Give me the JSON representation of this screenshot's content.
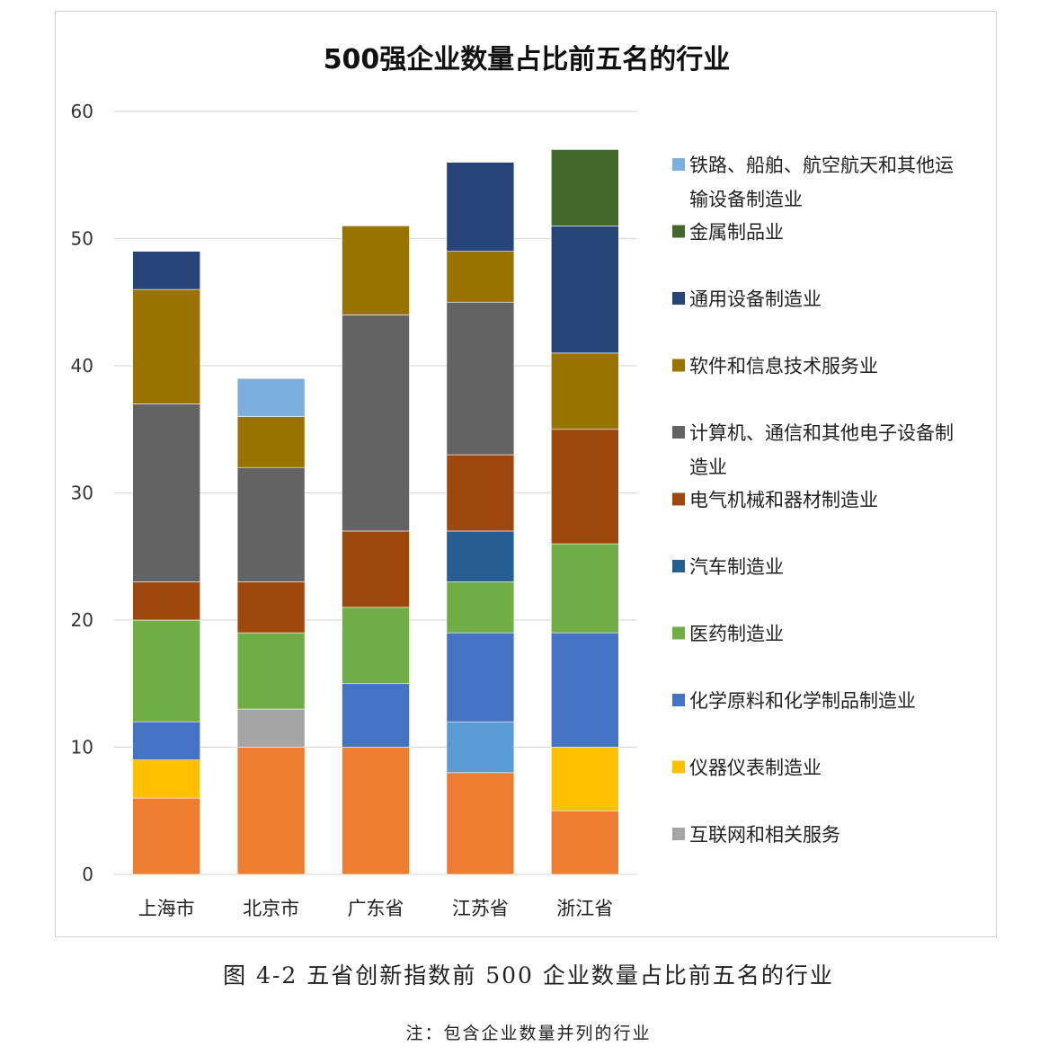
{
  "figure": {
    "caption": "图 4-2 五省创新指数前 500 企业数量占比前五名的行业",
    "note": "注：包含企业数量并列的行业"
  },
  "chart_data": {
    "type": "bar",
    "stacked": true,
    "title": "500强企业数量占比前五名的行业",
    "xlabel": "",
    "ylabel": "",
    "ylim": [
      0,
      60
    ],
    "yticks": [
      "0",
      "10",
      "20",
      "30",
      "40",
      "50",
      "60"
    ],
    "grid": true,
    "legend_position": "right",
    "categories": [
      "上海市",
      "北京市",
      "广东省",
      "江苏省",
      "浙江省"
    ],
    "series": [
      {
        "key": "s_orange",
        "color": "#ED7D31",
        "values": [
          6,
          10,
          10,
          8,
          5
        ]
      },
      {
        "key": "s_lightblue",
        "color": "#5B9BD5",
        "values": [
          0,
          0,
          0,
          4,
          0
        ]
      },
      {
        "name": "互联网和相关服务",
        "color": "#A5A5A5",
        "values": [
          0,
          3,
          0,
          0,
          0
        ]
      },
      {
        "name": "仪器仪表制造业",
        "color": "#FFC000",
        "values": [
          3,
          0,
          0,
          0,
          5
        ]
      },
      {
        "name": "化学原料和化学制品制造业",
        "color": "#4472C4",
        "values": [
          3,
          0,
          5,
          7,
          9
        ]
      },
      {
        "name": "医药制造业",
        "color": "#70AD47",
        "values": [
          8,
          6,
          6,
          4,
          7
        ]
      },
      {
        "name": "汽车制造业",
        "color": "#255E91",
        "values": [
          0,
          0,
          0,
          4,
          0
        ]
      },
      {
        "name": "电气机械和器材制造业",
        "color": "#9E480E",
        "values": [
          3,
          4,
          6,
          6,
          9
        ]
      },
      {
        "name": "计算机、通信和其他电子设备制造业",
        "color": "#636363",
        "values": [
          14,
          9,
          17,
          12,
          0
        ]
      },
      {
        "name": "软件和信息技术服务业",
        "color": "#997300",
        "values": [
          9,
          4,
          7,
          4,
          6
        ]
      },
      {
        "name": "通用设备制造业",
        "color": "#264478",
        "values": [
          3,
          0,
          0,
          7,
          10
        ]
      },
      {
        "name": "金属制品业",
        "color": "#43682B",
        "values": [
          0,
          0,
          0,
          0,
          6
        ]
      },
      {
        "name": "铁路、船舶、航空航天和其他运输设备制造业",
        "color": "#7CAFDD",
        "values": [
          0,
          3,
          0,
          0,
          0
        ]
      }
    ],
    "legend": [
      {
        "lines": [
          "铁路、船舶、航空航天和其他运",
          "输设备制造业"
        ],
        "color": "#7CAFDD"
      },
      {
        "lines": [
          "金属制品业"
        ],
        "color": "#43682B"
      },
      {
        "lines": [
          "通用设备制造业"
        ],
        "color": "#264478"
      },
      {
        "lines": [
          "软件和信息技术服务业"
        ],
        "color": "#997300"
      },
      {
        "lines": [
          "计算机、通信和其他电子设备制",
          "造业"
        ],
        "color": "#636363"
      },
      {
        "lines": [
          "电气机械和器材制造业"
        ],
        "color": "#9E480E"
      },
      {
        "lines": [
          "汽车制造业"
        ],
        "color": "#255E91"
      },
      {
        "lines": [
          "医药制造业"
        ],
        "color": "#70AD47"
      },
      {
        "lines": [
          "化学原料和化学制品制造业"
        ],
        "color": "#4472C4"
      },
      {
        "lines": [
          "仪器仪表制造业"
        ],
        "color": "#FFC000"
      },
      {
        "lines": [
          "互联网和相关服务"
        ],
        "color": "#A5A5A5"
      }
    ]
  }
}
